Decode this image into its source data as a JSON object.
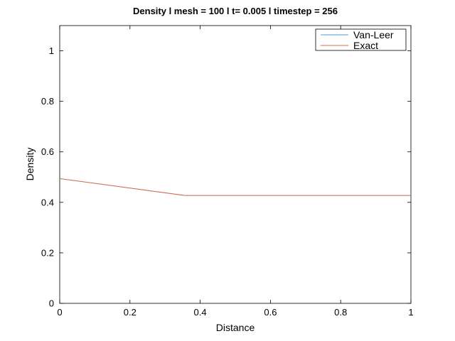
{
  "chart_data": {
    "type": "line",
    "title": "Density l mesh = 100 l  t= 0.005 l timestep = 256",
    "xlabel": "Distance",
    "ylabel": "Density",
    "xlim": [
      0,
      1
    ],
    "ylim": [
      0,
      1.1
    ],
    "xticks": [
      0,
      0.2,
      0.4,
      0.6,
      0.8,
      1
    ],
    "xtick_labels": [
      "0",
      "0.2",
      "0.4",
      "0.6",
      "0.8",
      "1"
    ],
    "yticks": [
      0,
      0.2,
      0.4,
      0.6,
      0.8,
      1
    ],
    "ytick_labels": [
      "0",
      "0.2",
      "0.4",
      "0.6",
      "0.8",
      "1"
    ],
    "grid": false,
    "legend_position": "top-right",
    "series": [
      {
        "name": "Van-Leer",
        "color": "#4a9fd0",
        "x": [
          0,
          0.357,
          1
        ],
        "y": [
          0.494,
          0.427,
          0.427
        ]
      },
      {
        "name": "Exact",
        "color": "#e0683a",
        "x": [
          0,
          0.357,
          1
        ],
        "y": [
          0.494,
          0.427,
          0.427
        ]
      }
    ]
  }
}
